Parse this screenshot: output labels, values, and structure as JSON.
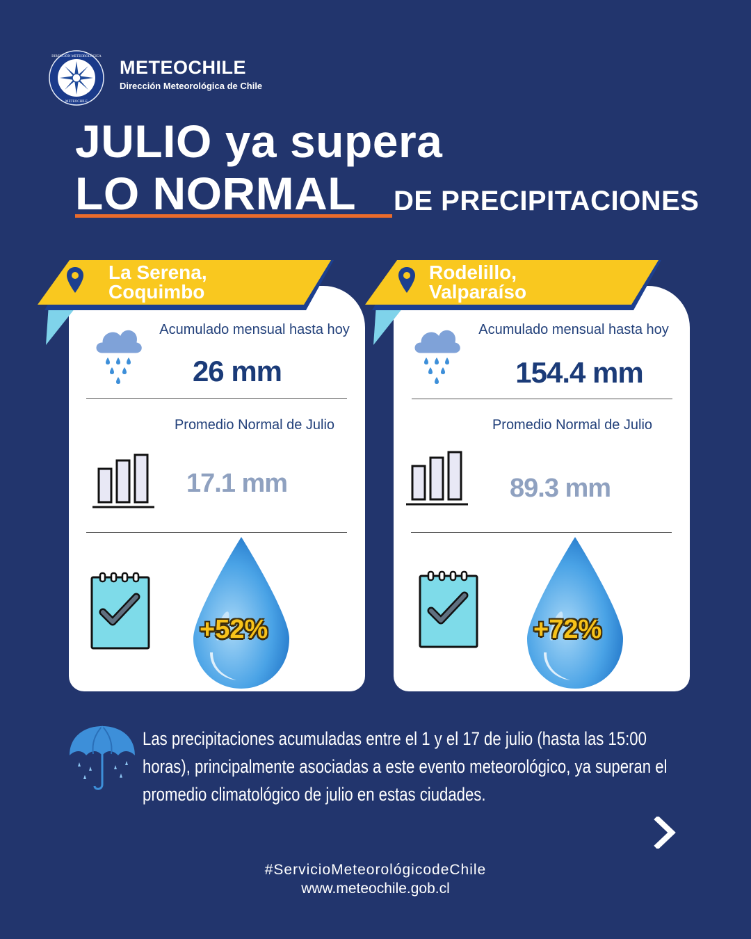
{
  "header": {
    "brand_name": "METEOCHILE",
    "brand_sub": "Dirección Meteorológica de Chile",
    "logo_ring_top": "DIRECCIÓN METEOROLÓGICA",
    "logo_ring_bottom": "METEOCHILE"
  },
  "title": {
    "line1": "JULIO ya supera",
    "line2": "LO NORMAL",
    "line3": "DE PRECIPITACIONES"
  },
  "cards": [
    {
      "location_line1": "La Serena,",
      "location_line2": "Coquimbo",
      "accum_label": "Acumulado mensual hasta hoy",
      "accum_value": "26 mm",
      "normal_label": "Promedio Normal de Julio",
      "normal_value": "17.1 mm",
      "percent": "+52%"
    },
    {
      "location_line1": "Rodelillo,",
      "location_line2": "Valparaíso",
      "accum_label": "Acumulado mensual hasta hoy",
      "accum_value": "154.4 mm",
      "normal_label": "Promedio Normal de Julio",
      "normal_value": "89.3 mm",
      "percent": "+72%"
    }
  ],
  "footer": {
    "description": "Las precipitaciones acumuladas entre el 1 y el 17 de julio (hasta las 15:00 horas), principalmente asociadas a este evento meteorológico, ya superan el promedio climatológico de julio en estas ciudades.",
    "hashtag": "#ServicioMeteorológicodeChile",
    "website": "www.meteochile.gob.cl"
  },
  "colors": {
    "background": "#22356d",
    "banner": "#f9c81f",
    "accent_orange": "#ea6b2b",
    "drop_blue": "#3d8fd9"
  },
  "icons": [
    "logo-icon",
    "location-pin-icon",
    "rain-cloud-icon",
    "bar-chart-icon",
    "checklist-icon",
    "water-drop-icon",
    "umbrella-icon",
    "chevron-right-icon"
  ]
}
